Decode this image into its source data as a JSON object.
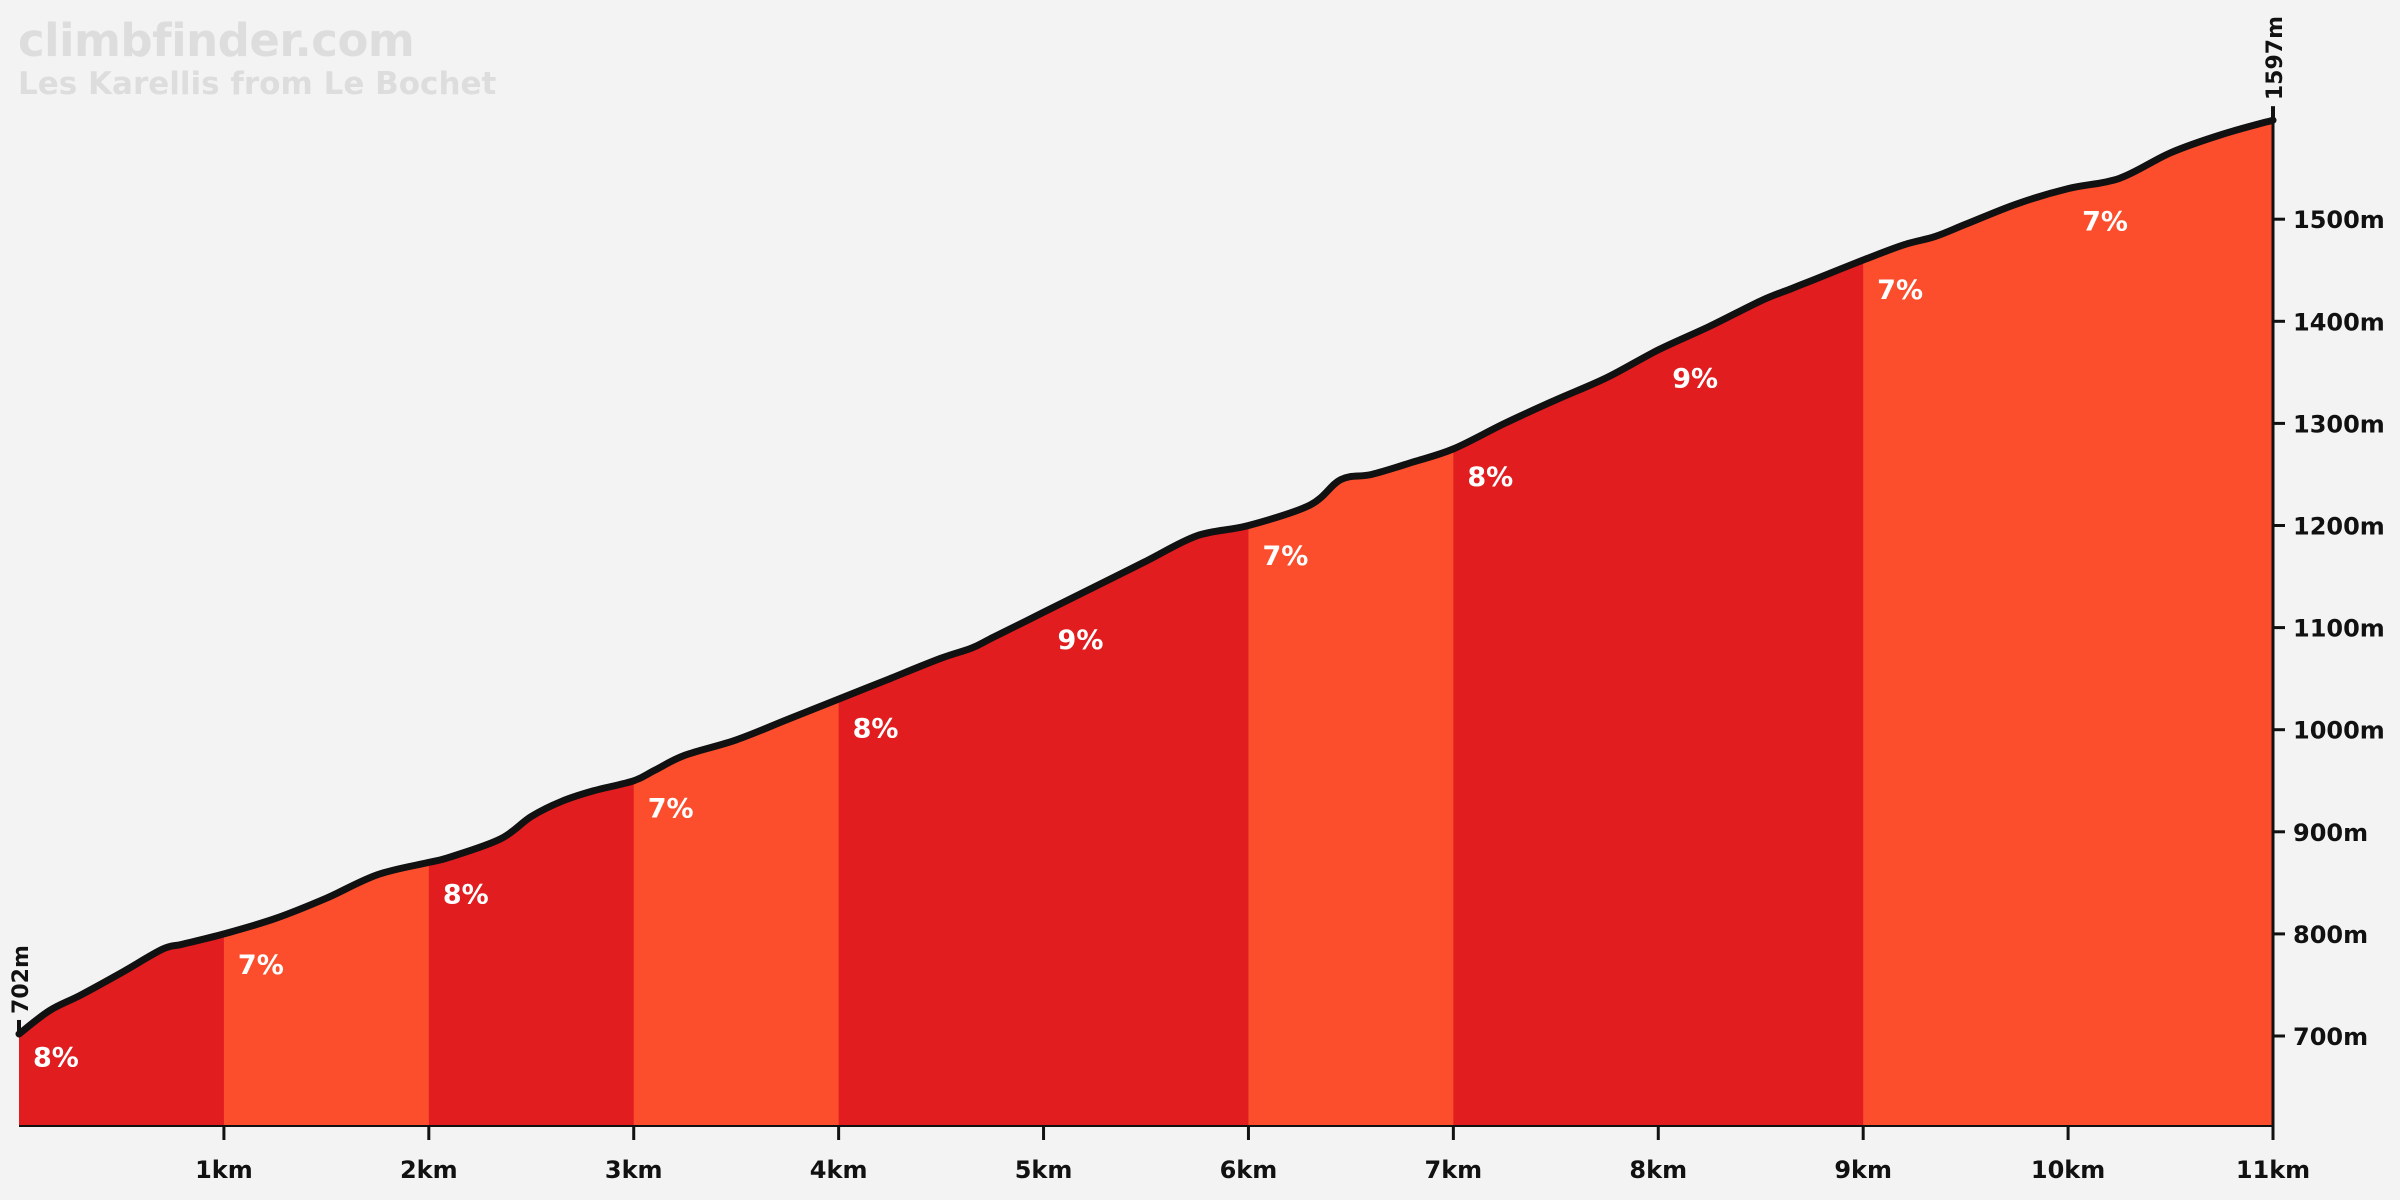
{
  "site": "climbfinder.com",
  "climb_name": "Les Karellis from Le Bochet",
  "colors": {
    "steep": "#e11d1f",
    "moderate": "#fc4e2d",
    "line": "#111111",
    "background": "#f3f3f3"
  },
  "start_label": "702m",
  "end_label": "1597m",
  "chart_data": {
    "type": "area",
    "title": "Les Karellis from Le Bochet",
    "xlabel": "",
    "ylabel": "",
    "xlim": [
      0,
      11
    ],
    "ylim": [
      610,
      1597
    ],
    "x_ticks": [
      "1km",
      "2km",
      "3km",
      "4km",
      "5km",
      "6km",
      "7km",
      "8km",
      "9km",
      "10km",
      "11km"
    ],
    "y_ticks": [
      "700m",
      "800m",
      "900m",
      "1000m",
      "1100m",
      "1200m",
      "1300m",
      "1400m",
      "1500m"
    ],
    "y_tick_values": [
      700,
      800,
      900,
      1000,
      1100,
      1200,
      1300,
      1400,
      1500
    ],
    "segments": [
      {
        "start": 0,
        "end": 1,
        "gradient": "8%",
        "color": "steep"
      },
      {
        "start": 1,
        "end": 2,
        "gradient": "7%",
        "color": "moderate"
      },
      {
        "start": 2,
        "end": 3,
        "gradient": "8%",
        "color": "steep"
      },
      {
        "start": 3,
        "end": 4,
        "gradient": "7%",
        "color": "moderate"
      },
      {
        "start": 4,
        "end": 5,
        "gradient": "8%",
        "color": "steep"
      },
      {
        "start": 5,
        "end": 6,
        "gradient": "9%",
        "color": "steep"
      },
      {
        "start": 6,
        "end": 7,
        "gradient": "7%",
        "color": "moderate"
      },
      {
        "start": 7,
        "end": 8,
        "gradient": "8%",
        "color": "steep"
      },
      {
        "start": 8,
        "end": 9,
        "gradient": "9%",
        "color": "steep"
      },
      {
        "start": 9,
        "end": 10,
        "gradient": "7%",
        "color": "moderate"
      },
      {
        "start": 10,
        "end": 11,
        "gradient": "7%",
        "color": "moderate"
      }
    ],
    "profile": {
      "x": [
        0,
        0.15,
        0.3,
        0.5,
        0.7,
        0.8,
        1.0,
        1.25,
        1.5,
        1.75,
        2.0,
        2.1,
        2.35,
        2.5,
        2.65,
        2.8,
        3.0,
        3.1,
        3.25,
        3.5,
        3.75,
        4.0,
        4.25,
        4.5,
        4.65,
        4.75,
        5.0,
        5.25,
        5.5,
        5.75,
        6.0,
        6.3,
        6.45,
        6.6,
        6.8,
        7.0,
        7.25,
        7.5,
        7.75,
        8.0,
        8.25,
        8.5,
        8.65,
        8.75,
        9.0,
        9.2,
        9.35,
        9.5,
        9.75,
        10.0,
        10.25,
        10.5,
        10.75,
        11.0
      ],
      "elevation": [
        702,
        725,
        740,
        762,
        785,
        790,
        800,
        815,
        835,
        858,
        870,
        875,
        893,
        915,
        930,
        940,
        950,
        960,
        975,
        990,
        1010,
        1030,
        1050,
        1070,
        1080,
        1090,
        1115,
        1140,
        1165,
        1190,
        1200,
        1220,
        1245,
        1250,
        1262,
        1275,
        1300,
        1323,
        1345,
        1372,
        1395,
        1420,
        1432,
        1440,
        1460,
        1475,
        1483,
        1495,
        1515,
        1530,
        1540,
        1565,
        1583,
        1597
      ]
    }
  }
}
